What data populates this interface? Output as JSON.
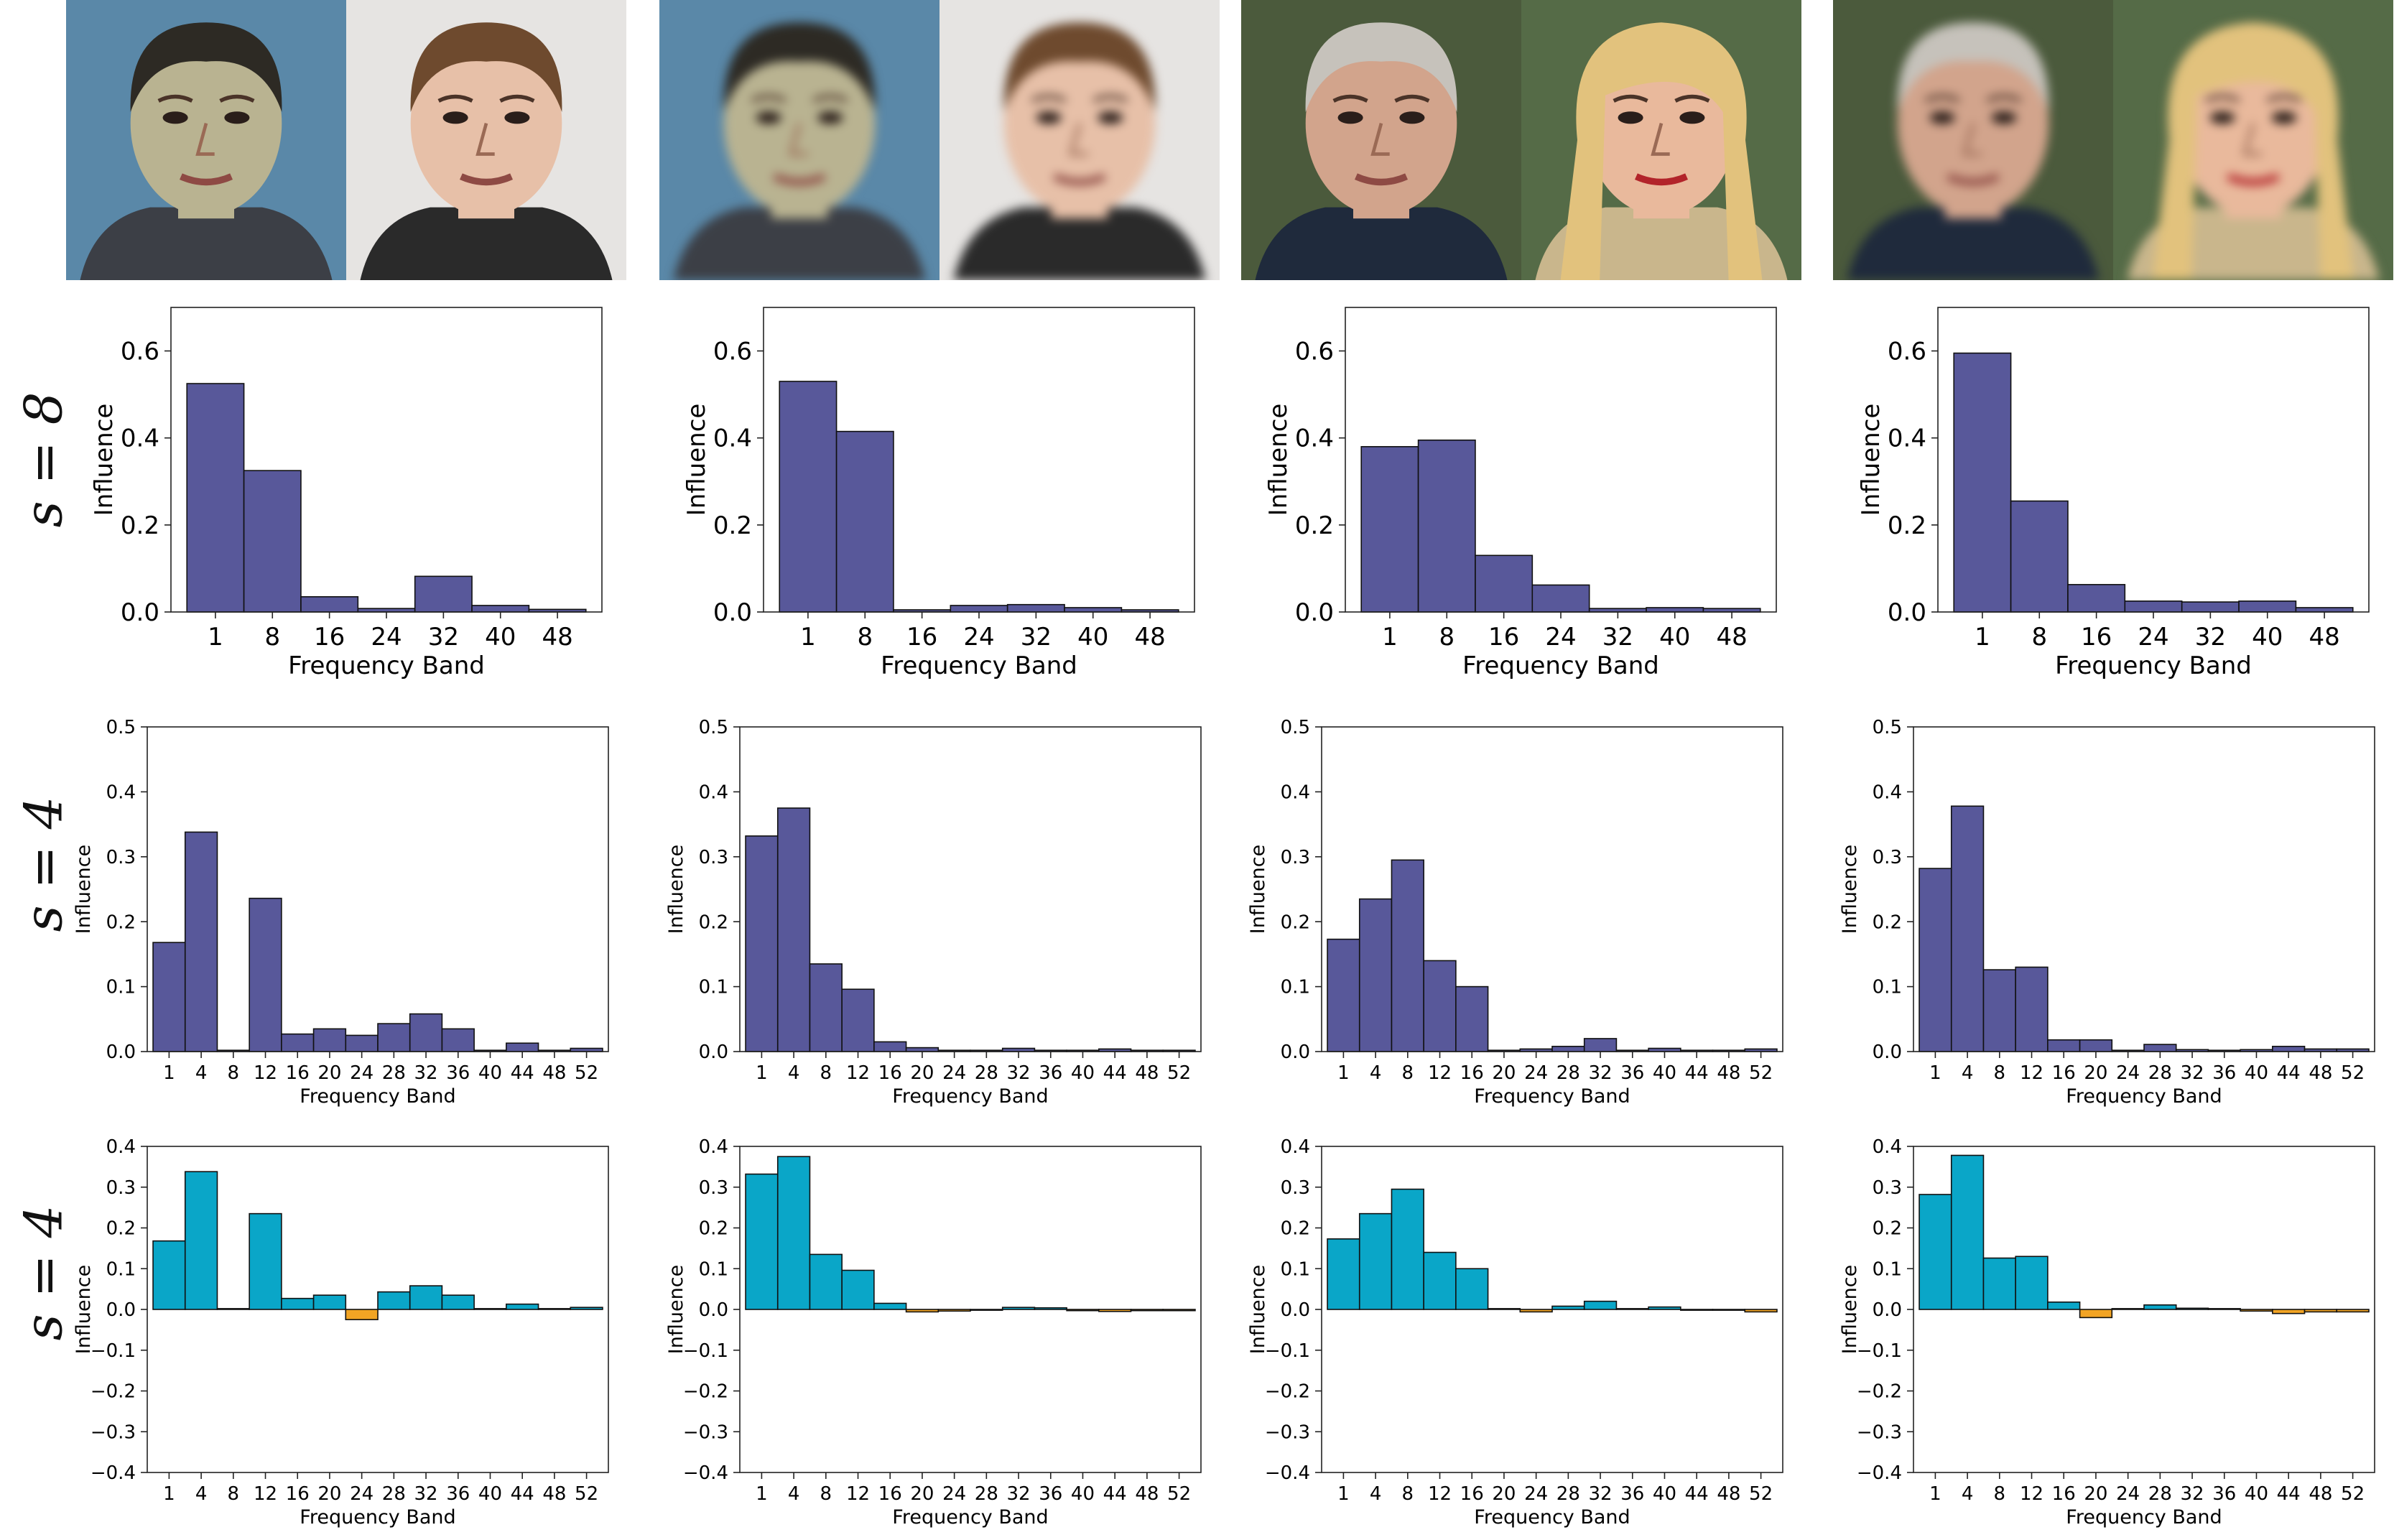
{
  "images": {
    "groups": [
      {
        "faces": [
          {
            "kind": "young-man-dark-hair",
            "skin": "#b9b391",
            "hair": "#2d2a24",
            "bg": "#5a88a8",
            "shirt": "#3c3f46",
            "blur": false
          },
          {
            "kind": "man-light-hair",
            "skin": "#e7c0a8",
            "hair": "#6e4a2e",
            "bg": "#e6e4e2",
            "shirt": "#2a2a2a",
            "blur": false
          }
        ]
      },
      {
        "faces": [
          {
            "kind": "young-man-dark-hair",
            "skin": "#b9b391",
            "hair": "#2d2a24",
            "bg": "#5a88a8",
            "shirt": "#3c3f46",
            "blur": true
          },
          {
            "kind": "man-light-hair",
            "skin": "#e7c0a8",
            "hair": "#6e4a2e",
            "bg": "#e6e4e2",
            "shirt": "#2a2a2a",
            "blur": true
          }
        ]
      },
      {
        "faces": [
          {
            "kind": "grey-haired-man",
            "skin": "#d2a48c",
            "hair": "#c6c2bb",
            "bg": "#4b5a3c",
            "shirt": "#1f2a3c",
            "blur": false
          },
          {
            "kind": "blonde-woman",
            "skin": "#e9b99c",
            "hair": "#e2c27d",
            "bg": "#556b47",
            "shirt": "#c9b68c",
            "blur": false
          }
        ]
      },
      {
        "faces": [
          {
            "kind": "grey-haired-man",
            "skin": "#d2a48c",
            "hair": "#c6c2bb",
            "bg": "#4b5a3c",
            "shirt": "#1f2a3c",
            "blur": true
          },
          {
            "kind": "blonde-woman",
            "skin": "#e9b99c",
            "hair": "#e2c27d",
            "bg": "#556b47",
            "shirt": "#c9b68c",
            "blur": true
          }
        ]
      }
    ]
  },
  "row_labels": [
    "s = 8",
    "s = 4",
    "s = 4"
  ],
  "colors": {
    "bar": "#58589a",
    "positive": "#0aa6c8",
    "negative": "#f2a424",
    "edge": "#111111"
  },
  "chart_data": [
    {
      "type": "bar",
      "row": 0,
      "col": 0,
      "ylabel": "Influence",
      "xlabel": "Frequency Band",
      "ylim": [
        0,
        0.7
      ],
      "yticks": [
        "0.0",
        "0.2",
        "0.4",
        "0.6"
      ],
      "categories": [
        "1",
        "8",
        "16",
        "24",
        "32",
        "40",
        "48"
      ],
      "values": [
        0.525,
        0.325,
        0.035,
        0.008,
        0.082,
        0.015,
        0.006
      ]
    },
    {
      "type": "bar",
      "row": 0,
      "col": 1,
      "ylabel": "Influence",
      "xlabel": "Frequency Band",
      "ylim": [
        0,
        0.7
      ],
      "yticks": [
        "0.0",
        "0.2",
        "0.4",
        "0.6"
      ],
      "categories": [
        "1",
        "8",
        "16",
        "24",
        "32",
        "40",
        "48"
      ],
      "values": [
        0.53,
        0.415,
        0.005,
        0.015,
        0.017,
        0.01,
        0.005
      ]
    },
    {
      "type": "bar",
      "row": 0,
      "col": 2,
      "ylabel": "Influence",
      "xlabel": "Frequency Band",
      "ylim": [
        0,
        0.7
      ],
      "yticks": [
        "0.0",
        "0.2",
        "0.4",
        "0.6"
      ],
      "categories": [
        "1",
        "8",
        "16",
        "24",
        "32",
        "40",
        "48"
      ],
      "values": [
        0.38,
        0.395,
        0.13,
        0.062,
        0.008,
        0.01,
        0.008
      ]
    },
    {
      "type": "bar",
      "row": 0,
      "col": 3,
      "ylabel": "Influence",
      "xlabel": "Frequency Band",
      "ylim": [
        0,
        0.7
      ],
      "yticks": [
        "0.0",
        "0.2",
        "0.4",
        "0.6"
      ],
      "categories": [
        "1",
        "8",
        "16",
        "24",
        "32",
        "40",
        "48"
      ],
      "values": [
        0.595,
        0.255,
        0.063,
        0.025,
        0.023,
        0.025,
        0.01
      ]
    },
    {
      "type": "bar",
      "row": 1,
      "col": 0,
      "ylabel": "Influence",
      "xlabel": "Frequency Band",
      "ylim": [
        0,
        0.5
      ],
      "yticks": [
        "0.0",
        "0.1",
        "0.2",
        "0.3",
        "0.4",
        "0.5"
      ],
      "categories": [
        "1",
        "4",
        "8",
        "12",
        "16",
        "20",
        "24",
        "28",
        "32",
        "36",
        "40",
        "44",
        "48",
        "52"
      ],
      "values": [
        0.168,
        0.338,
        0.002,
        0.236,
        0.027,
        0.035,
        0.025,
        0.043,
        0.058,
        0.035,
        0.002,
        0.013,
        0.002,
        0.005
      ]
    },
    {
      "type": "bar",
      "row": 1,
      "col": 1,
      "ylabel": "Influence",
      "xlabel": "Frequency Band",
      "ylim": [
        0,
        0.5
      ],
      "yticks": [
        "0.0",
        "0.1",
        "0.2",
        "0.3",
        "0.4",
        "0.5"
      ],
      "categories": [
        "1",
        "4",
        "8",
        "12",
        "16",
        "20",
        "24",
        "28",
        "32",
        "36",
        "40",
        "44",
        "48",
        "52"
      ],
      "values": [
        0.332,
        0.375,
        0.135,
        0.096,
        0.015,
        0.006,
        0.002,
        0.002,
        0.005,
        0.002,
        0.002,
        0.004,
        0.002,
        0.002
      ]
    },
    {
      "type": "bar",
      "row": 1,
      "col": 2,
      "ylabel": "Influence",
      "xlabel": "Frequency Band",
      "ylim": [
        0,
        0.5
      ],
      "yticks": [
        "0.0",
        "0.1",
        "0.2",
        "0.3",
        "0.4",
        "0.5"
      ],
      "categories": [
        "1",
        "4",
        "8",
        "12",
        "16",
        "20",
        "24",
        "28",
        "32",
        "36",
        "40",
        "44",
        "48",
        "52"
      ],
      "values": [
        0.173,
        0.235,
        0.295,
        0.14,
        0.1,
        0.002,
        0.004,
        0.008,
        0.02,
        0.002,
        0.005,
        0.002,
        0.002,
        0.004
      ]
    },
    {
      "type": "bar",
      "row": 1,
      "col": 3,
      "ylabel": "Influence",
      "xlabel": "Frequency Band",
      "ylim": [
        0,
        0.5
      ],
      "yticks": [
        "0.0",
        "0.1",
        "0.2",
        "0.3",
        "0.4",
        "0.5"
      ],
      "categories": [
        "1",
        "4",
        "8",
        "12",
        "16",
        "20",
        "24",
        "28",
        "32",
        "36",
        "40",
        "44",
        "48",
        "52"
      ],
      "values": [
        0.282,
        0.378,
        0.126,
        0.13,
        0.018,
        0.018,
        0.002,
        0.011,
        0.003,
        0.002,
        0.003,
        0.008,
        0.004,
        0.004
      ]
    },
    {
      "type": "bar",
      "row": 2,
      "col": 0,
      "ylabel": "Influence",
      "xlabel": "Frequency Band",
      "ylim": [
        -0.4,
        0.4
      ],
      "yticks": [
        "−0.4",
        "−0.3",
        "−0.2",
        "−0.1",
        "0.0",
        "0.1",
        "0.2",
        "0.3",
        "0.4"
      ],
      "categories": [
        "1",
        "4",
        "8",
        "12",
        "16",
        "20",
        "24",
        "28",
        "32",
        "36",
        "40",
        "44",
        "48",
        "52"
      ],
      "values": [
        0.168,
        0.338,
        0.002,
        0.235,
        0.027,
        0.035,
        -0.025,
        0.043,
        0.058,
        0.035,
        0.002,
        0.013,
        0.002,
        0.005
      ]
    },
    {
      "type": "bar",
      "row": 2,
      "col": 1,
      "ylabel": "Influence",
      "xlabel": "Frequency Band",
      "ylim": [
        -0.4,
        0.4
      ],
      "yticks": [
        "−0.4",
        "−0.3",
        "−0.2",
        "−0.1",
        "0.0",
        "0.1",
        "0.2",
        "0.3",
        "0.4"
      ],
      "categories": [
        "1",
        "4",
        "8",
        "12",
        "16",
        "20",
        "24",
        "28",
        "32",
        "36",
        "40",
        "44",
        "48",
        "52"
      ],
      "values": [
        0.332,
        0.375,
        0.135,
        0.096,
        0.015,
        -0.006,
        -0.004,
        -0.002,
        0.005,
        0.004,
        -0.003,
        -0.005,
        -0.003,
        -0.003
      ]
    },
    {
      "type": "bar",
      "row": 2,
      "col": 2,
      "ylabel": "Influence",
      "xlabel": "Frequency Band",
      "ylim": [
        -0.4,
        0.4
      ],
      "yticks": [
        "−0.4",
        "−0.3",
        "−0.2",
        "−0.1",
        "0.0",
        "0.1",
        "0.2",
        "0.3",
        "0.4"
      ],
      "categories": [
        "1",
        "4",
        "8",
        "12",
        "16",
        "20",
        "24",
        "28",
        "32",
        "36",
        "40",
        "44",
        "48",
        "52"
      ],
      "values": [
        0.173,
        0.235,
        0.295,
        0.14,
        0.1,
        0.002,
        -0.006,
        0.008,
        0.02,
        0.002,
        0.006,
        -0.002,
        -0.002,
        -0.006
      ]
    },
    {
      "type": "bar",
      "row": 2,
      "col": 3,
      "ylabel": "Influence",
      "xlabel": "Frequency Band",
      "ylim": [
        -0.4,
        0.4
      ],
      "yticks": [
        "−0.4",
        "−0.3",
        "−0.2",
        "−0.1",
        "0.0",
        "0.1",
        "0.2",
        "0.3",
        "0.4"
      ],
      "categories": [
        "1",
        "4",
        "8",
        "12",
        "16",
        "20",
        "24",
        "28",
        "32",
        "36",
        "40",
        "44",
        "48",
        "52"
      ],
      "values": [
        0.282,
        0.378,
        0.126,
        0.13,
        0.018,
        -0.02,
        0.002,
        0.011,
        0.003,
        0.002,
        -0.004,
        -0.01,
        -0.006,
        -0.006
      ]
    }
  ]
}
